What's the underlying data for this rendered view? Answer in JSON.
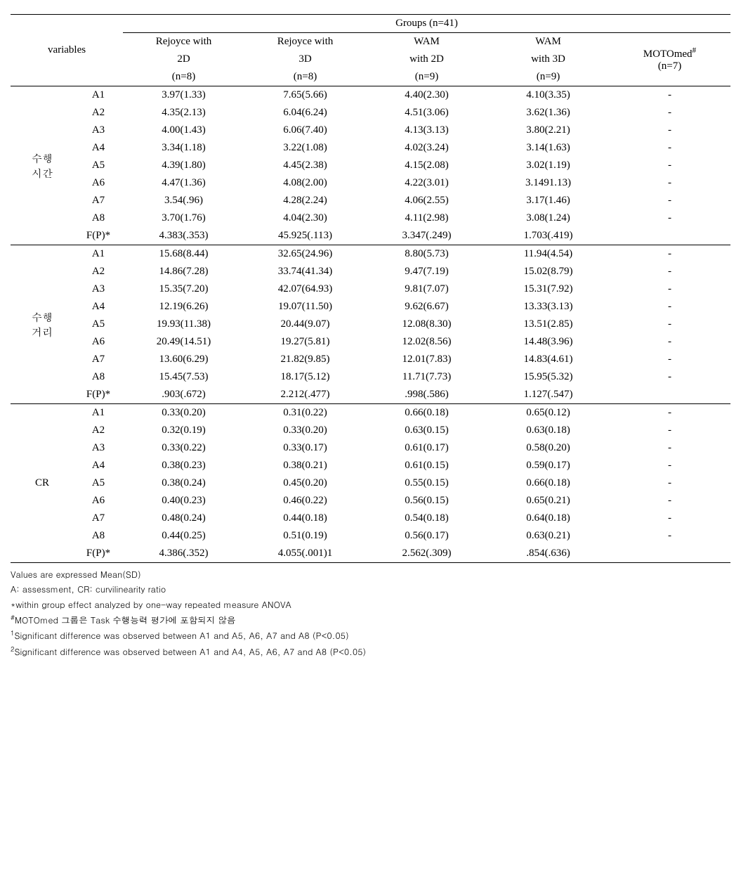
{
  "header": {
    "variables": "variables",
    "groups": "Groups (n=41)",
    "cols": [
      {
        "line1": "Rejoyce with",
        "line2": "2D",
        "line3": "(n=8)"
      },
      {
        "line1": "Rejoyce with",
        "line2": "3D",
        "line3": "(n=8)"
      },
      {
        "line1": "WAM",
        "line2": "with 2D",
        "line3": "(n=9)"
      },
      {
        "line1": "WAM",
        "line2": "with 3D",
        "line3": "(n=9)"
      },
      {
        "line1": "MOTOmed",
        "sup": "#",
        "line2": "(n=7)",
        "line3": ""
      }
    ]
  },
  "stat_label": "F(P)*",
  "sections": [
    {
      "name": "수행\n시간",
      "rows": [
        {
          "a": "A1",
          "v": [
            "3.97(1.33)",
            "7.65(5.66)",
            "4.40(2.30)",
            "4.10(3.35)",
            "-"
          ]
        },
        {
          "a": "A2",
          "v": [
            "4.35(2.13)",
            "6.04(6.24)",
            "4.51(3.06)",
            "3.62(1.36)",
            "-"
          ]
        },
        {
          "a": "A3",
          "v": [
            "4.00(1.43)",
            "6.06(7.40)",
            "4.13(3.13)",
            "3.80(2.21)",
            "-"
          ]
        },
        {
          "a": "A4",
          "v": [
            "3.34(1.18)",
            "3.22(1.08)",
            "4.02(3.24)",
            "3.14(1.63)",
            "-"
          ]
        },
        {
          "a": "A5",
          "v": [
            "4.39(1.80)",
            "4.45(2.38)",
            "4.15(2.08)",
            "3.02(1.19)",
            "-"
          ]
        },
        {
          "a": "A6",
          "v": [
            "4.47(1.36)",
            "4.08(2.00)",
            "4.22(3.01)",
            "3.1491.13)",
            "-"
          ]
        },
        {
          "a": "A7",
          "v": [
            "3.54(.96)",
            "4.28(2.24)",
            "4.06(2.55)",
            "3.17(1.46)",
            "-"
          ]
        },
        {
          "a": "A8",
          "v": [
            "3.70(1.76)",
            "4.04(2.30)",
            "4.11(2.98)",
            "3.08(1.24)",
            "-"
          ]
        }
      ],
      "stat": [
        "4.383(.353)",
        "45.925(.113)",
        "3.347(.249)",
        "1.703(.419)",
        ""
      ]
    },
    {
      "name": "수행\n거리",
      "rows": [
        {
          "a": "A1",
          "v": [
            "15.68(8.44)",
            "32.65(24.96)",
            "8.80(5.73)",
            "11.94(4.54)",
            "-"
          ]
        },
        {
          "a": "A2",
          "v": [
            "14.86(7.28)",
            "33.74(41.34)",
            "9.47(7.19)",
            "15.02(8.79)",
            "-"
          ]
        },
        {
          "a": "A3",
          "v": [
            "15.35(7.20)",
            "42.07(64.93)",
            "9.81(7.07)",
            "15.31(7.92)",
            "-"
          ]
        },
        {
          "a": "A4",
          "v": [
            "12.19(6.26)",
            "19.07(11.50)",
            "9.62(6.67)",
            "13.33(3.13)",
            "-"
          ]
        },
        {
          "a": "A5",
          "v": [
            "19.93(11.38)",
            "20.44(9.07)",
            "12.08(8.30)",
            "13.51(2.85)",
            "-"
          ]
        },
        {
          "a": "A6",
          "v": [
            "20.49(14.51)",
            "19.27(5.81)",
            "12.02(8.56)",
            "14.48(3.96)",
            "-"
          ]
        },
        {
          "a": "A7",
          "v": [
            "13.60(6.29)",
            "21.82(9.85)",
            "12.01(7.83)",
            "14.83(4.61)",
            "-"
          ]
        },
        {
          "a": "A8",
          "v": [
            "15.45(7.53)",
            "18.17(5.12)",
            "11.71(7.73)",
            "15.95(5.32)",
            "-"
          ]
        }
      ],
      "stat": [
        ".903(.672)",
        "2.212(.477)",
        ".998(.586)",
        "1.127(.547)",
        ""
      ]
    },
    {
      "name": "CR",
      "rows": [
        {
          "a": "A1",
          "v": [
            "0.33(0.20)",
            "0.31(0.22)",
            "0.66(0.18)",
            "0.65(0.12)",
            "-"
          ]
        },
        {
          "a": "A2",
          "v": [
            "0.32(0.19)",
            "0.33(0.20)",
            "0.63(0.15)",
            "0.63(0.18)",
            "-"
          ]
        },
        {
          "a": "A3",
          "v": [
            "0.33(0.22)",
            "0.33(0.17)",
            "0.61(0.17)",
            "0.58(0.20)",
            "-"
          ]
        },
        {
          "a": "A4",
          "v": [
            "0.38(0.23)",
            "0.38(0.21)",
            "0.61(0.15)",
            "0.59(0.17)",
            "-"
          ]
        },
        {
          "a": "A5",
          "v": [
            "0.38(0.24)",
            "0.45(0.20)",
            "0.55(0.15)",
            "0.66(0.18)",
            "-"
          ]
        },
        {
          "a": "A6",
          "v": [
            "0.40(0.23)",
            "0.46(0.22)",
            "0.56(0.15)",
            "0.65(0.21)",
            "-"
          ]
        },
        {
          "a": "A7",
          "v": [
            "0.48(0.24)",
            "0.44(0.18)",
            "0.54(0.18)",
            "0.64(0.18)",
            "-"
          ]
        },
        {
          "a": "A8",
          "v": [
            "0.44(0.25)",
            "0.51(0.19)",
            "0.56(0.17)",
            "0.63(0.21)",
            "-"
          ]
        }
      ],
      "stat": [
        "4.386(.352)",
        "4.055(.001)1",
        "2.562(.309)",
        ".854(.636)",
        ""
      ]
    }
  ],
  "footnotes": [
    {
      "pre": "",
      "text": "Values are expressed Mean(SD)"
    },
    {
      "pre": "",
      "text": "A: assessment, CR: curvilinearity ratio"
    },
    {
      "pre": "*",
      "text": "within group effect analyzed by one-way repeated measure ANOVA"
    },
    {
      "pre": "#",
      "sup": true,
      "text": "MOTOmed 그룹은 Task 수행능력 평가에 포함되지 않음"
    },
    {
      "pre": "1",
      "sup": true,
      "text": "Significant difference was observed between A1 and A5, A6, A7 and A8 (P<0.05)"
    },
    {
      "pre": "2",
      "sup": true,
      "text": "Significant difference was observed between A1 and A4, A5, A6, A7 and A8 (P<0.05)"
    }
  ]
}
